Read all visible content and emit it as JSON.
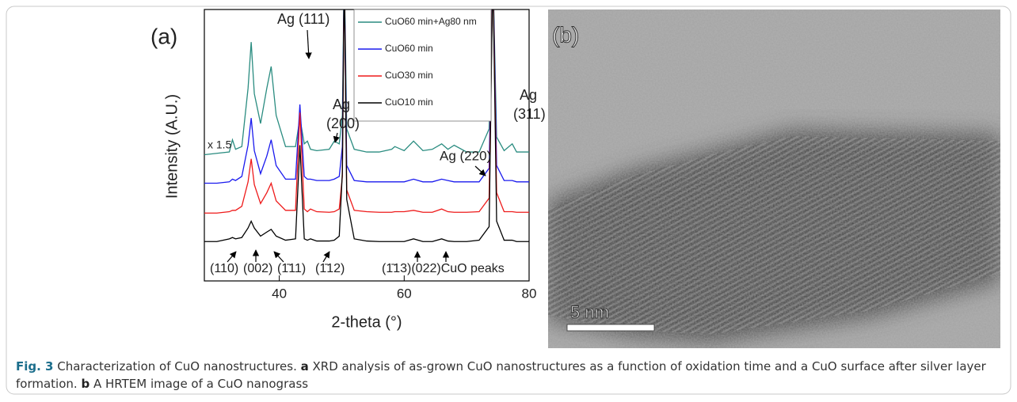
{
  "chart_data": {
    "type": "line",
    "panel_label": "(a)",
    "x_label": "2-theta (°)",
    "y_label": "Intensity (A.U.)",
    "xlim": [
      28,
      80
    ],
    "ylim": [
      0,
      100
    ],
    "xticks": [
      40,
      60,
      80
    ],
    "x": [
      28,
      30,
      32,
      32.5,
      33,
      34,
      35,
      35.5,
      36,
      37,
      38,
      38.7,
      39.5,
      41,
      42.6,
      43.3,
      44,
      44.5,
      45,
      46,
      48,
      48.8,
      49.6,
      50.1,
      50.4,
      50.8,
      52,
      54,
      56,
      58,
      58.5,
      60,
      61.5,
      63,
      64.5,
      66,
      67,
      68,
      70,
      72,
      73.6,
      74.2,
      74.8,
      76,
      77.3,
      78,
      80
    ],
    "series": [
      {
        "name": "CuO60 min+Ag80 nm",
        "color": "#2a8c80",
        "values": [
          46.5,
          47,
          47.5,
          52,
          48.5,
          49.5,
          71,
          88,
          69,
          58,
          71,
          79,
          61,
          49.5,
          49.5,
          60,
          50.5,
          51.5,
          48.5,
          48,
          48.5,
          51.5,
          50.5,
          61,
          115,
          56,
          48.5,
          47.5,
          47.5,
          48.5,
          49.5,
          48,
          51.5,
          48,
          48.5,
          50.5,
          48.5,
          50,
          47.5,
          47.5,
          56,
          115,
          53,
          48,
          50.5,
          47.5,
          47.5
        ]
      },
      {
        "name": "CuO60 min",
        "color": "#1a1aee",
        "values": [
          36,
          36,
          36.5,
          37.5,
          37,
          38.5,
          50,
          60,
          48,
          39.5,
          46,
          52,
          42.5,
          37.5,
          37.5,
          65,
          38.5,
          37.5,
          37.5,
          37,
          37,
          37.5,
          38.5,
          49.5,
          115,
          42.5,
          37,
          36.5,
          36.5,
          36.5,
          36.5,
          36.5,
          37.5,
          36.5,
          36.5,
          37.5,
          37,
          36.5,
          36.5,
          36.5,
          41.5,
          115,
          42.5,
          37,
          37,
          36.5,
          36.5
        ]
      },
      {
        "name": "CuO30 min",
        "color": "#ee1a1a",
        "values": [
          25,
          25,
          25.5,
          26,
          26,
          27.5,
          36.5,
          45,
          35.5,
          28.5,
          32.5,
          36,
          29.5,
          26,
          26,
          62,
          26.5,
          25.5,
          26.5,
          25.5,
          25.3,
          25.5,
          26.5,
          38.5,
          115,
          33.5,
          26,
          25.5,
          25.3,
          25.3,
          25.5,
          25.5,
          26,
          25.3,
          25.3,
          26.5,
          25.5,
          25.3,
          25.3,
          25.5,
          30.5,
          115,
          32.5,
          25.5,
          25.5,
          25.3,
          25.3
        ]
      },
      {
        "name": "CuO10 min",
        "color": "#000000",
        "values": [
          14.5,
          14.5,
          15.5,
          16,
          15.5,
          16,
          19.5,
          22,
          19.5,
          16.5,
          18,
          19,
          16.5,
          15,
          15.5,
          50,
          15.5,
          15,
          15.5,
          14.7,
          14.7,
          15,
          16.5,
          40,
          115,
          30,
          15.5,
          14.7,
          14.5,
          14.5,
          14.5,
          14.5,
          15.5,
          14.5,
          14.5,
          15.5,
          14.7,
          14.5,
          14.5,
          15,
          20,
          115,
          22,
          15,
          15,
          14.5,
          14.5
        ]
      }
    ],
    "annotations": [
      "Ag (111)",
      "Ag",
      "(200)",
      "Ag (220)",
      "Ag",
      "(311)",
      "x 1.5",
      "(110)",
      "(002)",
      "(1̄11)",
      "(1̄12)",
      "(1̄13)(022)CuO peaks"
    ]
  },
  "image_panel": {
    "label": "(b)",
    "scale_bar": "5 nm"
  },
  "caption": {
    "label": "Fig. 3",
    "text1": " Characterization of CuO nanostructures. ",
    "a": "a",
    "text2": " XRD analysis of as-grown CuO nanostructures as a function of oxidation time and a CuO surface after silver layer formation. ",
    "b": "b",
    "text3": " A HRTEM image of a CuO nanograss"
  }
}
